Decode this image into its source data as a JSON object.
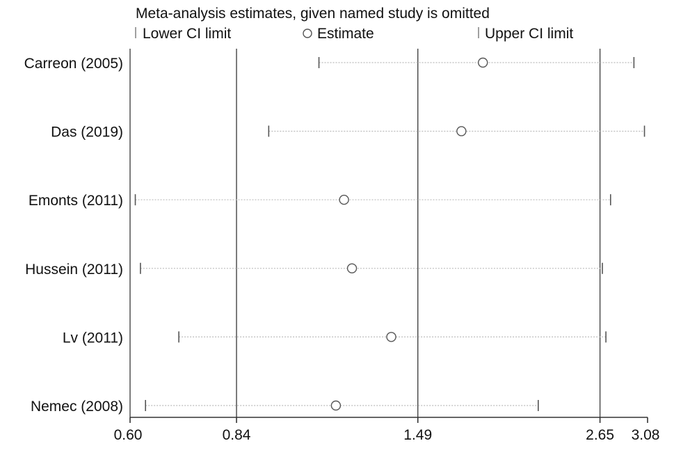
{
  "chart_data": {
    "type": "forest",
    "title": "Meta-analysis estimates, given named study is omitted",
    "legend": {
      "placement": "top",
      "items": [
        {
          "label": "Lower CI limit",
          "symbol": "tick"
        },
        {
          "label": "Estimate",
          "symbol": "circle"
        },
        {
          "label": "Upper CI limit",
          "symbol": "tick"
        }
      ]
    },
    "x_scale": "log",
    "xlim": [
      0.6,
      3.08
    ],
    "xticks": [
      0.6,
      0.84,
      1.49,
      2.65,
      3.08
    ],
    "xtick_labels": [
      "0.60",
      "0.84",
      "1.49",
      "2.65",
      "3.08"
    ],
    "reference_lines": [
      0.84,
      1.49,
      2.65
    ],
    "studies": [
      {
        "name": "Carreon (2005)",
        "lower": 1.09,
        "estimate": 1.83,
        "upper": 2.95
      },
      {
        "name": "Das (2019)",
        "lower": 0.93,
        "estimate": 1.71,
        "upper": 3.05
      },
      {
        "name": "Emonts (2011)",
        "lower": 0.61,
        "estimate": 1.18,
        "upper": 2.74
      },
      {
        "name": "Hussein (2011)",
        "lower": 0.62,
        "estimate": 1.21,
        "upper": 2.67
      },
      {
        "name": "Lv (2011)",
        "lower": 0.7,
        "estimate": 1.37,
        "upper": 2.7
      },
      {
        "name": "Nemec (2008)",
        "lower": 0.63,
        "estimate": 1.15,
        "upper": 2.18
      }
    ]
  }
}
